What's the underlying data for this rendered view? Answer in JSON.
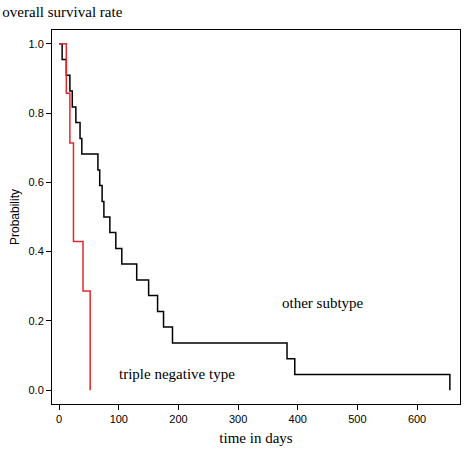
{
  "chart_data": {
    "type": "step",
    "title": "overall survival rate",
    "x_label": "time in days",
    "y_label": "Probability",
    "xlim": [
      -12,
      672
    ],
    "ylim": [
      -0.04,
      1.04
    ],
    "xticks": [
      0,
      100,
      200,
      300,
      400,
      500,
      600
    ],
    "yticks": [
      {
        "value": 0,
        "label": "0.0"
      },
      0.2,
      0.4,
      0.6,
      0.8,
      {
        "value": 1,
        "label": "1.0"
      }
    ],
    "grid": false,
    "series": [
      {
        "name": "other subtype",
        "color": "#000000",
        "line_style": "solid",
        "x": [
          0,
          5,
          12,
          18,
          22,
          28,
          35,
          38,
          65,
          68,
          72,
          75,
          85,
          95,
          105,
          130,
          150,
          165,
          175,
          190,
          382,
          395,
          655
        ],
        "values": [
          1.0,
          0.955,
          0.909,
          0.864,
          0.818,
          0.773,
          0.727,
          0.682,
          0.636,
          0.591,
          0.545,
          0.5,
          0.455,
          0.409,
          0.364,
          0.318,
          0.273,
          0.227,
          0.182,
          0.136,
          0.091,
          0.045,
          0.0
        ]
      },
      {
        "name": "triple negative type",
        "color": "#e0282e",
        "line_style": "solid",
        "x": [
          0,
          12,
          18,
          24,
          40,
          52
        ],
        "values": [
          1.0,
          0.857,
          0.714,
          0.429,
          0.286,
          0.0
        ]
      }
    ]
  }
}
